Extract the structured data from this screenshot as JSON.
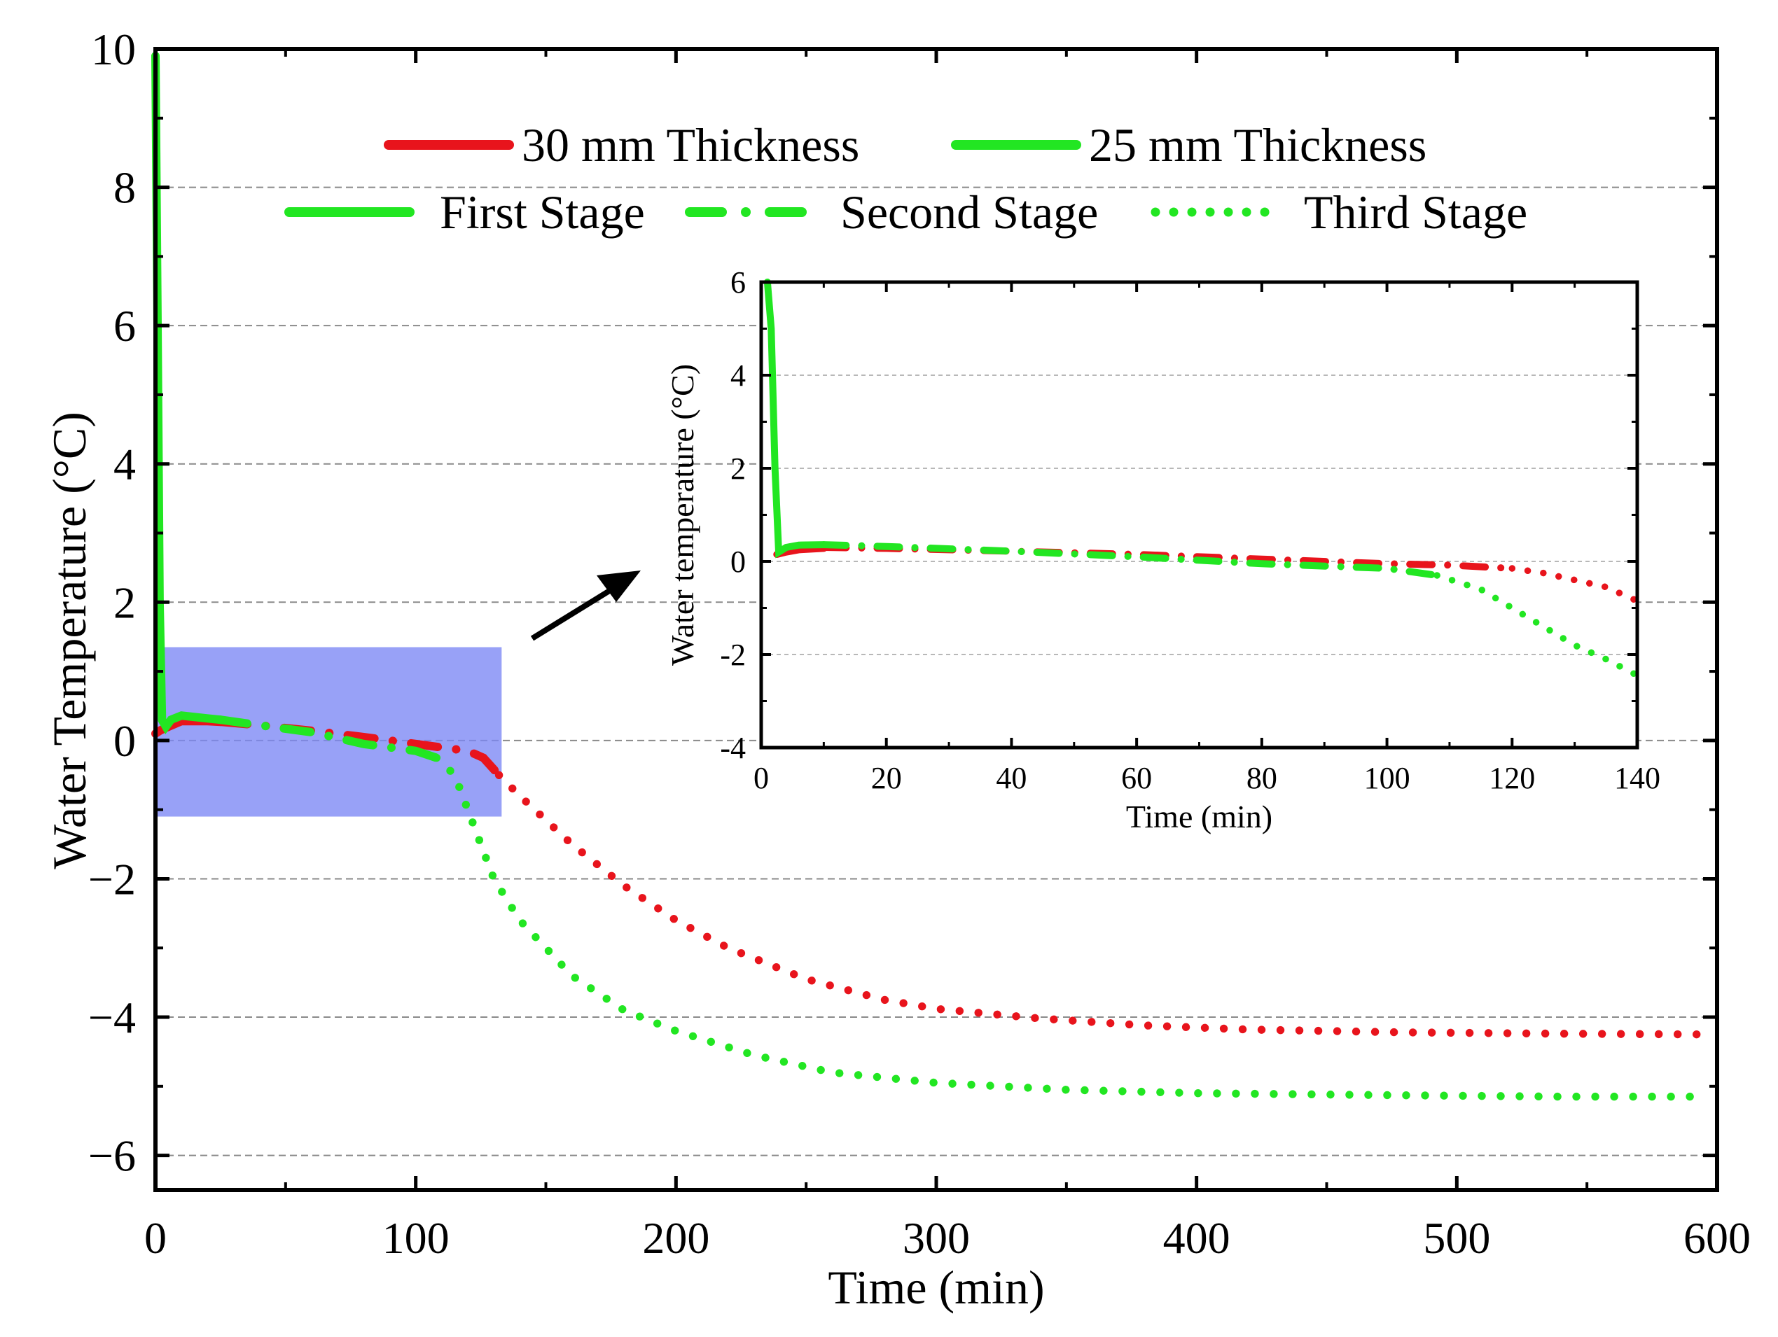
{
  "chart_data": {
    "type": "line",
    "xlabel": "Time (min)",
    "ylabel": "Water Temperature (°C)",
    "xlim": [
      0,
      600
    ],
    "ylim": [
      -6.5,
      10
    ],
    "x_ticks": [
      0,
      100,
      200,
      300,
      400,
      500,
      600
    ],
    "y_ticks": [
      -6,
      -4,
      -2,
      0,
      2,
      4,
      6,
      8,
      10
    ],
    "x_tick_labels": [
      "0",
      "100",
      "200",
      "300",
      "400",
      "500",
      "600"
    ],
    "y_tick_labels": [
      "−6",
      "−4",
      "−2",
      "0",
      "2",
      "4",
      "6",
      "8",
      "10"
    ],
    "grid": "horizontal dashed",
    "legend": {
      "placement": "top-center",
      "entries": [
        {
          "label": "30 mm Thickness",
          "color": "#e8141c",
          "style": "solid"
        },
        {
          "label": "25 mm Thickness",
          "color": "#22e622",
          "style": "solid"
        },
        {
          "label": "First Stage",
          "color": "#22e622",
          "style": "solid"
        },
        {
          "label": "Second Stage",
          "color": "#22e622",
          "style": "dash-dot"
        },
        {
          "label": "Third Stage",
          "color": "#22e622",
          "style": "dotted"
        }
      ]
    },
    "series": [
      {
        "name": "30 mm Thickness",
        "color": "#e8141c",
        "stages": {
          "first": [
            [
              0,
              0.1
            ],
            [
              2,
              0.15
            ],
            [
              5,
              0.2
            ],
            [
              10,
              0.28
            ],
            [
              20,
              0.28
            ],
            [
              25,
              0.27
            ]
          ],
          "second": [
            [
              25,
              0.27
            ],
            [
              40,
              0.22
            ],
            [
              60,
              0.14
            ],
            [
              80,
              0.05
            ],
            [
              100,
              -0.05
            ],
            [
              110,
              -0.1
            ],
            [
              120,
              -0.15
            ],
            [
              126,
              -0.25
            ],
            [
              132,
              -0.5
            ]
          ],
          "third": [
            [
              132,
              -0.5
            ],
            [
              140,
              -0.8
            ],
            [
              160,
              -1.5
            ],
            [
              180,
              -2.1
            ],
            [
              200,
              -2.6
            ],
            [
              220,
              -3.0
            ],
            [
              250,
              -3.45
            ],
            [
              280,
              -3.75
            ],
            [
              300,
              -3.88
            ],
            [
              340,
              -4.02
            ],
            [
              380,
              -4.12
            ],
            [
              420,
              -4.18
            ],
            [
              480,
              -4.22
            ],
            [
              540,
              -4.24
            ],
            [
              595,
              -4.25
            ]
          ]
        }
      },
      {
        "name": "25 mm Thickness",
        "color": "#22e622",
        "stages": {
          "first": [
            [
              0,
              9.9
            ],
            [
              0.8,
              6.0
            ],
            [
              1.6,
              2.0
            ],
            [
              2.5,
              0.3
            ],
            [
              4,
              0.2
            ],
            [
              6,
              0.3
            ],
            [
              10,
              0.36
            ],
            [
              20,
              0.32
            ],
            [
              25,
              0.3
            ]
          ],
          "second": [
            [
              25,
              0.3
            ],
            [
              40,
              0.22
            ],
            [
              60,
              0.12
            ],
            [
              80,
              -0.05
            ],
            [
              100,
              -0.15
            ],
            [
              108,
              -0.25
            ]
          ],
          "third": [
            [
              108,
              -0.25
            ],
            [
              115,
              -0.5
            ],
            [
              120,
              -1.0
            ],
            [
              130,
              -2.0
            ],
            [
              140,
              -2.6
            ],
            [
              160,
              -3.4
            ],
            [
              180,
              -3.9
            ],
            [
              200,
              -4.2
            ],
            [
              230,
              -4.55
            ],
            [
              260,
              -4.8
            ],
            [
              300,
              -4.95
            ],
            [
              350,
              -5.05
            ],
            [
              400,
              -5.1
            ],
            [
              480,
              -5.13
            ],
            [
              540,
              -5.15
            ],
            [
              595,
              -5.15
            ]
          ]
        }
      }
    ],
    "highlight_region": {
      "x": [
        0,
        133
      ],
      "y": [
        -1.1,
        1.35
      ],
      "color": "#7b86f5"
    },
    "inset": {
      "xlabel": "Time (min)",
      "ylabel": "Water temperature (°C)",
      "xlim": [
        0,
        140
      ],
      "ylim": [
        -4,
        6
      ],
      "x_ticks": [
        0,
        20,
        40,
        60,
        80,
        100,
        120,
        140
      ],
      "y_ticks": [
        -4,
        -2,
        0,
        2,
        4,
        6
      ],
      "x_tick_labels": [
        "0",
        "20",
        "40",
        "60",
        "80",
        "100",
        "120",
        "140"
      ],
      "y_tick_labels": [
        "-4",
        "-2",
        "0",
        "2",
        "4",
        "6"
      ],
      "series": [
        {
          "name": "30 mm Thickness",
          "color": "#e8141c",
          "stages": {
            "first": [
              [
                2.5,
                0.15
              ],
              [
                4,
                0.2
              ],
              [
                6,
                0.25
              ],
              [
                10,
                0.28
              ]
            ],
            "second": [
              [
                10,
                0.3
              ],
              [
                20,
                0.28
              ],
              [
                40,
                0.22
              ],
              [
                60,
                0.15
              ],
              [
                80,
                0.05
              ],
              [
                100,
                -0.05
              ],
              [
                110,
                -0.08
              ],
              [
                120,
                -0.15
              ]
            ],
            "third": [
              [
                120,
                -0.15
              ],
              [
                125,
                -0.25
              ],
              [
                130,
                -0.4
              ],
              [
                135,
                -0.55
              ],
              [
                140,
                -0.85
              ]
            ]
          }
        },
        {
          "name": "25 mm Thickness",
          "color": "#22e622",
          "stages": {
            "first": [
              [
                1,
                6.0
              ],
              [
                1.6,
                5.0
              ],
              [
                2.2,
                2.0
              ],
              [
                2.8,
                0.2
              ],
              [
                4,
                0.3
              ],
              [
                6,
                0.35
              ],
              [
                10,
                0.36
              ]
            ],
            "second": [
              [
                10,
                0.36
              ],
              [
                20,
                0.32
              ],
              [
                40,
                0.22
              ],
              [
                60,
                0.1
              ],
              [
                80,
                -0.05
              ],
              [
                100,
                -0.15
              ],
              [
                108,
                -0.3
              ]
            ],
            "third": [
              [
                108,
                -0.3
              ],
              [
                115,
                -0.6
              ],
              [
                120,
                -1.0
              ],
              [
                125,
                -1.4
              ],
              [
                130,
                -1.8
              ],
              [
                135,
                -2.1
              ],
              [
                140,
                -2.45
              ]
            ]
          }
        }
      ]
    }
  }
}
